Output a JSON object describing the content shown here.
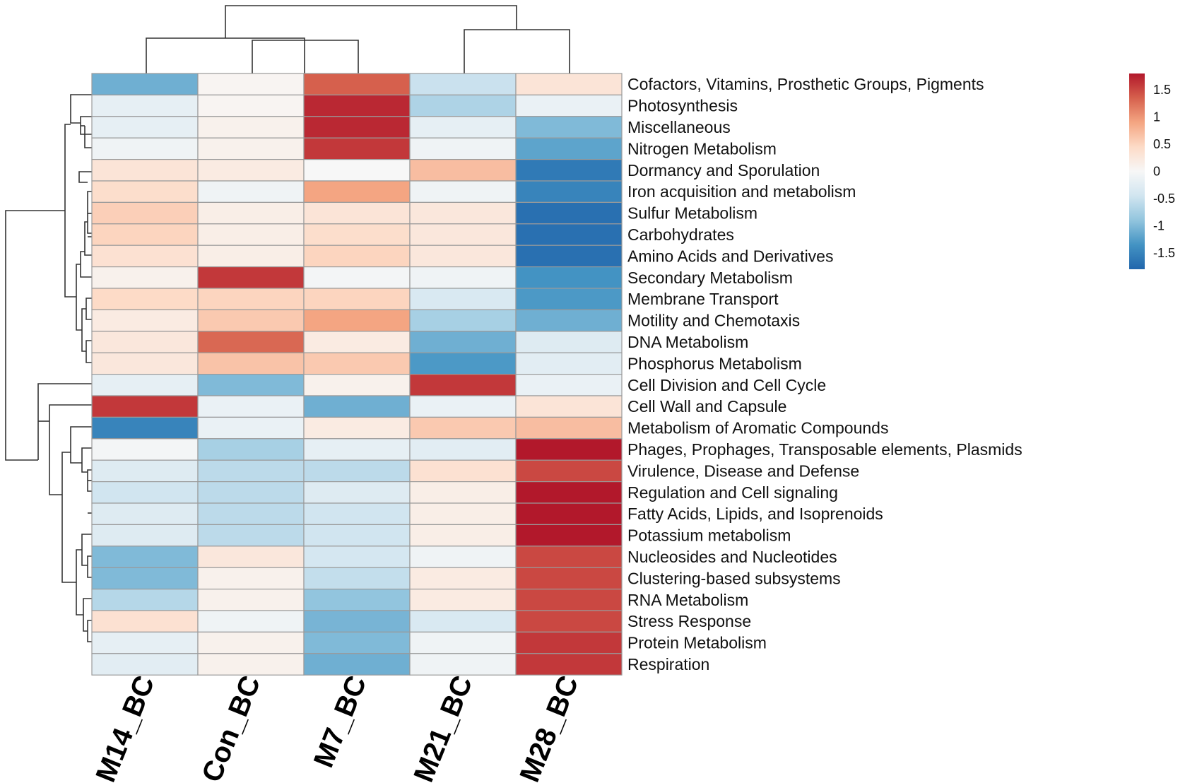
{
  "chart_data": {
    "type": "heatmap",
    "columns": [
      "M14_BC",
      "Con_BC",
      "M7_BC",
      "M21_BC",
      "M28_BC"
    ],
    "rows": [
      "Cofactors, Vitamins, Prosthetic Groups, Pigments",
      "Photosynthesis",
      "Miscellaneous",
      "Nitrogen Metabolism",
      "Dormancy and Sporulation",
      "Iron acquisition and metabolism",
      "Sulfur Metabolism",
      "Carbohydrates",
      "Amino Acids and Derivatives",
      "Secondary Metabolism",
      "Membrane Transport",
      "Motility and Chemotaxis",
      "DNA Metabolism",
      "Phosphorus Metabolism",
      "Cell Division and Cell Cycle",
      "Cell Wall and Capsule",
      "Metabolism of Aromatic Compounds",
      "Phages, Prophages, Transposable elements, Plasmids",
      "Virulence, Disease and Defense",
      "Regulation and Cell signaling",
      "Fatty Acids, Lipids, and Isoprenoids",
      "Potassium metabolism",
      "Nucleosides and Nucleotides",
      "Clustering-based subsystems",
      "RNA Metabolism",
      "Stress Response",
      "Protein Metabolism",
      "Respiration"
    ],
    "values": [
      [
        -1.1,
        0.05,
        1.35,
        -0.5,
        0.3
      ],
      [
        -0.2,
        0.05,
        1.7,
        -0.7,
        -0.15
      ],
      [
        -0.2,
        0.1,
        1.7,
        -0.2,
        -1.0
      ],
      [
        -0.1,
        0.1,
        1.6,
        -0.1,
        -1.2
      ],
      [
        0.3,
        0.2,
        0.0,
        0.7,
        -1.6
      ],
      [
        0.4,
        -0.1,
        0.9,
        -0.1,
        -1.5
      ],
      [
        0.55,
        0.15,
        0.3,
        0.25,
        -1.7
      ],
      [
        0.5,
        0.15,
        0.4,
        0.25,
        -1.7
      ],
      [
        0.35,
        0.15,
        0.5,
        0.25,
        -1.7
      ],
      [
        0.1,
        1.6,
        -0.05,
        -0.1,
        -1.35
      ],
      [
        0.45,
        0.5,
        0.5,
        -0.35,
        -1.3
      ],
      [
        0.2,
        0.6,
        0.9,
        -0.75,
        -1.1
      ],
      [
        0.25,
        1.3,
        0.2,
        -1.1,
        -0.3
      ],
      [
        0.25,
        0.65,
        0.6,
        -1.3,
        -0.25
      ],
      [
        -0.2,
        -1.0,
        0.1,
        1.6,
        -0.15
      ],
      [
        1.6,
        -0.15,
        -1.1,
        -0.15,
        0.3
      ],
      [
        -1.5,
        -0.15,
        0.2,
        0.6,
        0.7
      ],
      [
        -0.05,
        -0.75,
        -0.2,
        -0.25,
        1.8
      ],
      [
        -0.3,
        -0.6,
        -0.6,
        0.35,
        1.5
      ],
      [
        -0.45,
        -0.6,
        -0.3,
        0.15,
        1.8
      ],
      [
        -0.3,
        -0.6,
        -0.45,
        0.15,
        1.8
      ],
      [
        -0.3,
        -0.6,
        -0.45,
        0.15,
        1.8
      ],
      [
        -1.0,
        0.25,
        -0.4,
        -0.1,
        1.5
      ],
      [
        -1.0,
        0.1,
        -0.55,
        0.2,
        1.5
      ],
      [
        -0.65,
        0.1,
        -0.9,
        0.2,
        1.5
      ],
      [
        0.35,
        -0.1,
        -1.05,
        -0.35,
        1.5
      ],
      [
        -0.2,
        0.1,
        -1.0,
        -0.1,
        1.6
      ],
      [
        -0.25,
        0.1,
        -1.1,
        -0.1,
        1.6
      ]
    ],
    "legend": {
      "ticks": [
        1.5,
        1,
        0.5,
        0,
        -0.5,
        -1,
        -1.5
      ],
      "tick_labels": [
        "1.5",
        "1",
        "0.5",
        "0",
        "-0.5",
        "-1",
        "-1.5"
      ],
      "range": [
        -1.8,
        1.8
      ],
      "colors": [
        "#2166ac",
        "#4393c3",
        "#92c5de",
        "#d1e5f0",
        "#f7f7f7",
        "#fddbc7",
        "#f4a582",
        "#d6604d",
        "#b2182b"
      ]
    },
    "column_dendrogram": "((M14_BC,(Con_BC,M7_BC)),(M21_BC,M28_BC))",
    "row_dendrogram": "clustered",
    "title": "",
    "xlabel": "",
    "ylabel": ""
  }
}
